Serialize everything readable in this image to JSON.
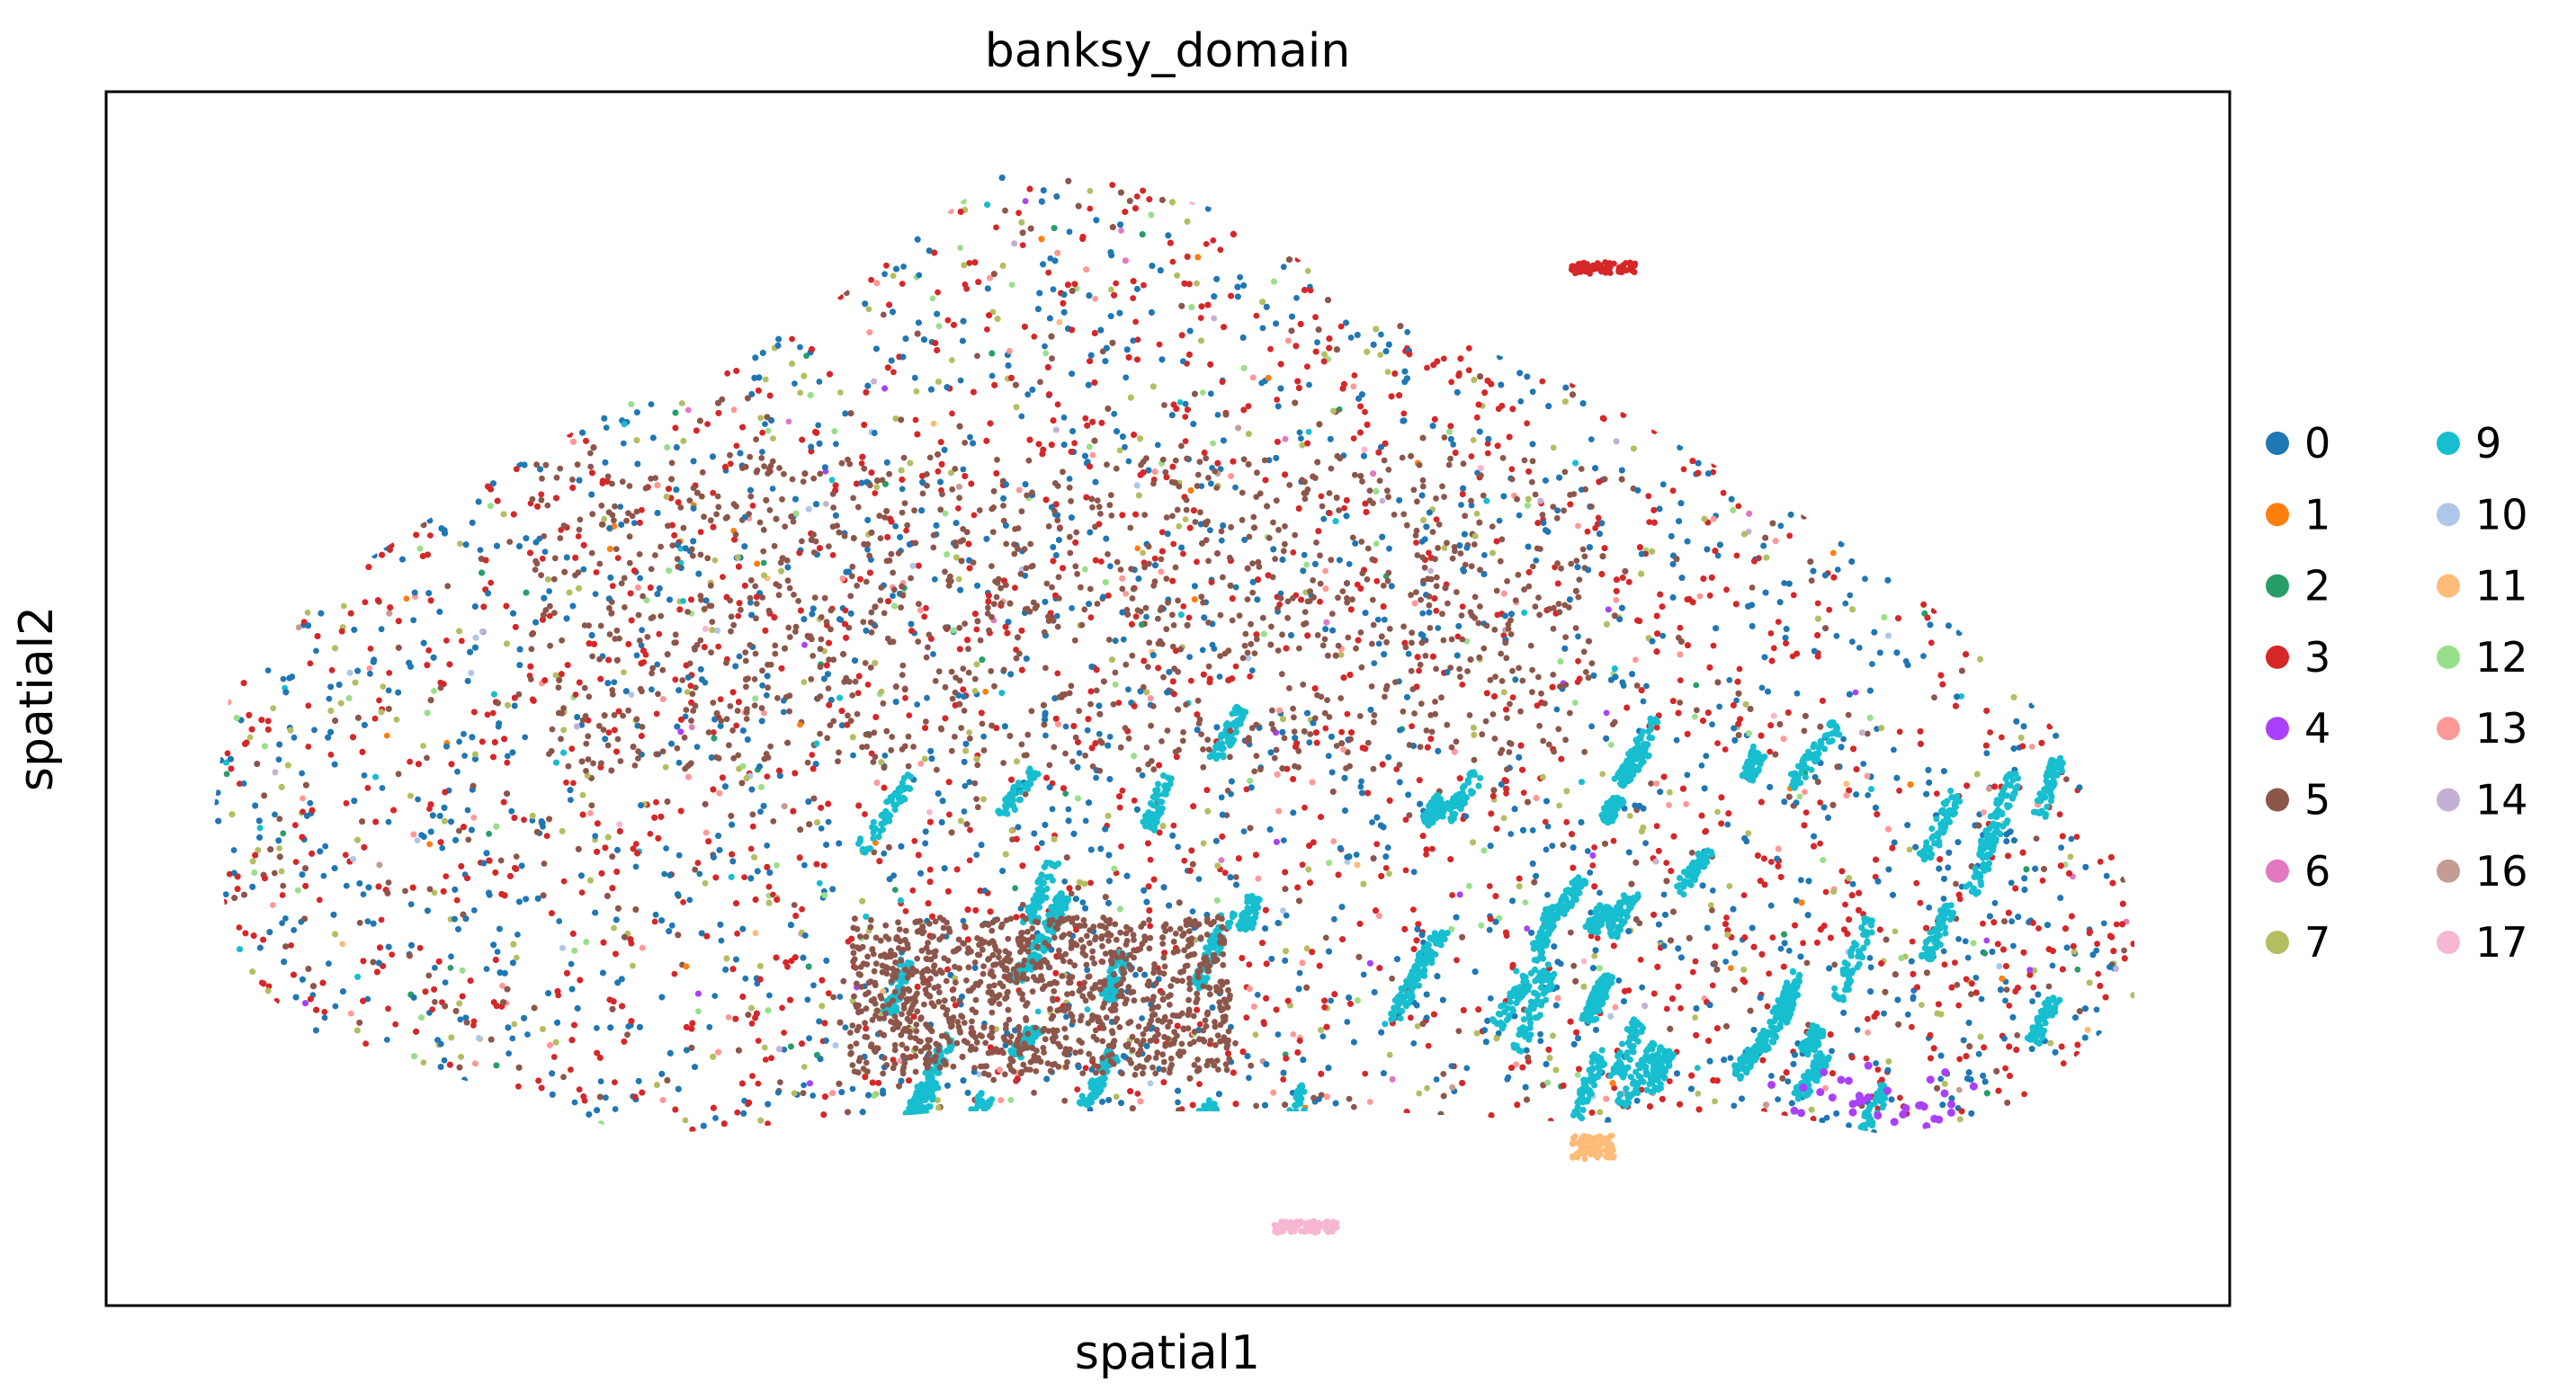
{
  "chart_data": {
    "type": "scatter",
    "title": "banksy_domain",
    "xlabel": "spatial1",
    "ylabel": "spatial2",
    "grid": false,
    "legend_placement": "right-outside",
    "legend_columns": 2,
    "xlim": [
      0,
      1
    ],
    "ylim": [
      0,
      1
    ],
    "categories": [
      {
        "name": "0",
        "color": "#1f77b4"
      },
      {
        "name": "1",
        "color": "#ff7f0e"
      },
      {
        "name": "2",
        "color": "#279e68"
      },
      {
        "name": "3",
        "color": "#d62728"
      },
      {
        "name": "4",
        "color": "#aa40fc"
      },
      {
        "name": "5",
        "color": "#8c564b"
      },
      {
        "name": "6",
        "color": "#e377c2"
      },
      {
        "name": "7",
        "color": "#b5bd61"
      },
      {
        "name": "9",
        "color": "#17becf"
      },
      {
        "name": "10",
        "color": "#aec7e8"
      },
      {
        "name": "11",
        "color": "#ffbb78"
      },
      {
        "name": "12",
        "color": "#98df8a"
      },
      {
        "name": "13",
        "color": "#ff9896"
      },
      {
        "name": "14",
        "color": "#c5b0d5"
      },
      {
        "name": "16",
        "color": "#c49c94"
      },
      {
        "name": "17",
        "color": "#f7b6d2"
      }
    ],
    "tissue_outline": [
      [
        0.05,
        0.6
      ],
      [
        0.06,
        0.47
      ],
      [
        0.11,
        0.4
      ],
      [
        0.18,
        0.32
      ],
      [
        0.25,
        0.25
      ],
      [
        0.33,
        0.19
      ],
      [
        0.38,
        0.12
      ],
      [
        0.43,
        0.055
      ],
      [
        0.48,
        0.075
      ],
      [
        0.53,
        0.1
      ],
      [
        0.58,
        0.16
      ],
      [
        0.63,
        0.2
      ],
      [
        0.69,
        0.24
      ],
      [
        0.75,
        0.3
      ],
      [
        0.8,
        0.35
      ],
      [
        0.85,
        0.41
      ],
      [
        0.89,
        0.47
      ],
      [
        0.92,
        0.53
      ],
      [
        0.94,
        0.6
      ],
      [
        0.955,
        0.67
      ],
      [
        0.955,
        0.75
      ],
      [
        0.9,
        0.84
      ],
      [
        0.84,
        0.86
      ],
      [
        0.78,
        0.84
      ],
      [
        0.7,
        0.85
      ],
      [
        0.6,
        0.84
      ],
      [
        0.4,
        0.84
      ],
      [
        0.25,
        0.86
      ],
      [
        0.18,
        0.82
      ],
      [
        0.1,
        0.78
      ],
      [
        0.06,
        0.72
      ]
    ],
    "cluster_regions": [
      {
        "cluster": "9",
        "shape": "streaks",
        "bounds": [
          [
            0.36,
            0.53
          ],
          [
            0.93,
            0.85
          ]
        ]
      },
      {
        "cluster": "5",
        "shape": "band",
        "bounds": [
          [
            0.2,
            0.3
          ],
          [
            0.7,
            0.56
          ]
        ]
      },
      {
        "cluster": "5",
        "shape": "band",
        "bounds": [
          [
            0.35,
            0.68
          ],
          [
            0.53,
            0.81
          ]
        ]
      },
      {
        "cluster": "17",
        "shape": "cluster",
        "bounds": [
          [
            0.55,
            0.93
          ],
          [
            0.58,
            0.94
          ]
        ]
      },
      {
        "cluster": "11",
        "shape": "cluster",
        "bounds": [
          [
            0.69,
            0.86
          ],
          [
            0.71,
            0.88
          ]
        ]
      },
      {
        "cluster": "3",
        "shape": "cluster",
        "bounds": [
          [
            0.69,
            0.14
          ],
          [
            0.72,
            0.15
          ]
        ]
      },
      {
        "cluster": "4",
        "shape": "scattered",
        "bounds": [
          [
            0.78,
            0.8
          ],
          [
            0.88,
            0.86
          ]
        ]
      }
    ]
  }
}
